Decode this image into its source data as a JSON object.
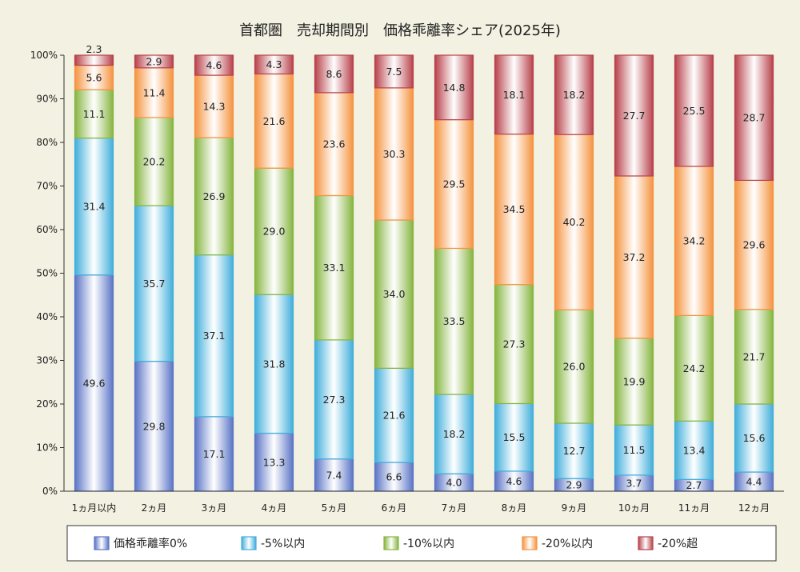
{
  "chart_data": {
    "type": "bar",
    "stacked": true,
    "title": "首都圏　売却期間別　価格乖離率シェア(2025年)",
    "categories": [
      "1ヵ月以内",
      "2ヵ月",
      "3ヵ月",
      "4ヵ月",
      "5ヵ月",
      "6ヵ月",
      "7ヵ月",
      "8ヵ月",
      "9ヵ月",
      "10ヵ月",
      "11ヵ月",
      "12ヵ月"
    ],
    "ylim": [
      0,
      100
    ],
    "yticks": [
      "0%",
      "10%",
      "20%",
      "30%",
      "40%",
      "50%",
      "60%",
      "70%",
      "80%",
      "90%",
      "100%"
    ],
    "grid": false,
    "legend_position": "bottom",
    "series": [
      {
        "name": "価格乖離率0%",
        "color": "#5a74c6",
        "values": [
          49.6,
          29.8,
          17.1,
          13.3,
          7.4,
          6.6,
          4.0,
          4.6,
          2.9,
          3.7,
          2.7,
          4.4
        ],
        "labels": [
          "49.6",
          "29.8",
          "17.1",
          "13.3",
          "7.4",
          "6.6",
          "4.0",
          "4.6",
          "2.9",
          "3.7",
          "2.7",
          "4.4"
        ]
      },
      {
        "name": "-5%以内",
        "color": "#41aedb",
        "values": [
          31.4,
          35.7,
          37.1,
          31.8,
          27.3,
          21.6,
          18.2,
          15.5,
          12.7,
          11.5,
          13.4,
          15.6
        ],
        "labels": [
          "31.4",
          "35.7",
          "37.1",
          "31.8",
          "27.3",
          "21.6",
          "18.2",
          "15.5",
          "12.7",
          "11.5",
          "13.4",
          "15.6"
        ]
      },
      {
        "name": "-10%以内",
        "color": "#86b540",
        "values": [
          11.1,
          20.2,
          26.9,
          29.0,
          33.1,
          34.0,
          33.5,
          27.3,
          26.0,
          19.9,
          24.2,
          21.7
        ],
        "labels": [
          "11.1",
          "20.2",
          "26.9",
          "29.0",
          "33.1",
          "34.0",
          "33.5",
          "27.3",
          "26.0",
          "19.9",
          "24.2",
          "21.7"
        ]
      },
      {
        "name": "-20%以内",
        "color": "#f59340",
        "values": [
          5.6,
          11.4,
          14.3,
          21.6,
          23.6,
          30.3,
          29.5,
          34.5,
          40.2,
          37.2,
          34.2,
          29.6
        ],
        "labels": [
          "5.6",
          "11.4",
          "14.3",
          "21.6",
          "23.6",
          "30.3",
          "29.5",
          "34.5",
          "40.2",
          "37.2",
          "34.2",
          "29.6"
        ]
      },
      {
        "name": "-20%超",
        "color": "#b8414a",
        "values": [
          2.3,
          2.9,
          4.6,
          4.3,
          8.6,
          7.5,
          14.8,
          18.1,
          18.2,
          27.7,
          25.5,
          28.7
        ],
        "labels": [
          "2.3",
          "2.9",
          "4.6",
          "4.3",
          "8.6",
          "7.5",
          "14.8",
          "18.1",
          "18.2",
          "27.7",
          "25.5",
          "28.7"
        ]
      }
    ]
  }
}
